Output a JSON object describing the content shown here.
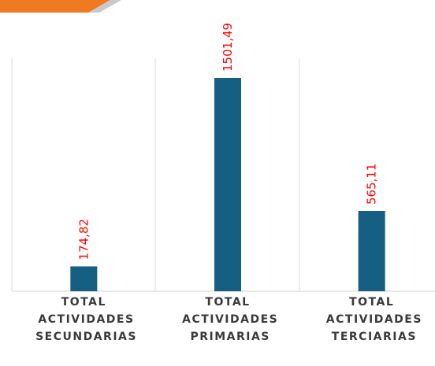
{
  "chart_data": {
    "type": "bar",
    "categories": [
      "TOTAL ACTIVIDADES SECUNDARIAS",
      "TOTAL ACTIVIDADES PRIMARIAS",
      "TOTAL ACTIVIDADES TERCIARIAS"
    ],
    "values": [
      174.82,
      1501.49,
      565.11
    ],
    "value_labels": [
      "174,82",
      "1501,49",
      "565,11"
    ],
    "color": "#155f82",
    "label_color": "#ff0000",
    "ylim": [
      0,
      2000
    ]
  }
}
